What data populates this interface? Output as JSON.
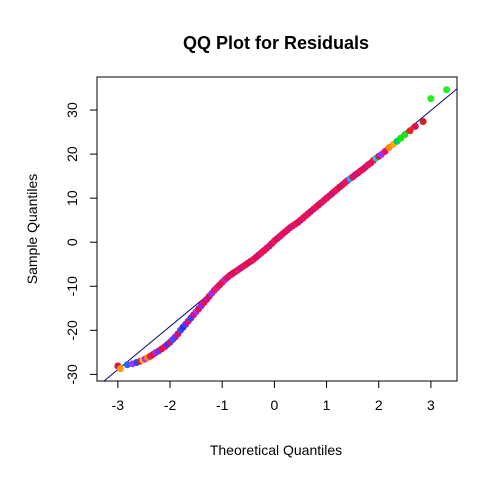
{
  "chart_data": {
    "type": "scatter",
    "title": "QQ Plot for Residuals",
    "xlabel": "Theoretical Quantiles",
    "ylabel": "Sample Quantiles",
    "xlim": [
      -3.4,
      3.5
    ],
    "ylim": [
      -31.5,
      37.5
    ],
    "x_ticks": [
      -3,
      -2,
      -1,
      0,
      1,
      2,
      3
    ],
    "x_tick_labels": [
      "-3",
      "-2",
      "-1",
      "0",
      "1",
      "2",
      "3"
    ],
    "y_ticks": [
      -30,
      -20,
      -10,
      0,
      10,
      20,
      30
    ],
    "y_tick_labels": [
      "-30",
      "-20",
      "-10",
      "0",
      "10",
      "20",
      "30"
    ],
    "grid": false,
    "reference_line": {
      "intercept": 0.5,
      "slope": 9.8,
      "color": "#00008b"
    },
    "points": [
      {
        "x": -3.0,
        "y": -28.1,
        "color": "#dd1133"
      },
      {
        "x": -2.95,
        "y": -28.7,
        "color": "#ff9900"
      },
      {
        "x": -2.82,
        "y": -27.8,
        "color": "#2266ff"
      },
      {
        "x": -2.72,
        "y": -27.6,
        "color": "#aa33ff"
      },
      {
        "x": -2.64,
        "y": -27.3,
        "color": "#3344ee"
      },
      {
        "x": -2.57,
        "y": -27.0,
        "color": "#dd1144"
      },
      {
        "x": -2.52,
        "y": -26.8,
        "color": "#ffcc00"
      },
      {
        "x": -2.48,
        "y": -26.5,
        "color": "#cc22ff"
      },
      {
        "x": -2.43,
        "y": -26.2,
        "color": "#ff8800"
      },
      {
        "x": -2.38,
        "y": -25.9,
        "color": "#dd2255"
      },
      {
        "x": -2.33,
        "y": -25.5,
        "color": "#ee1133"
      },
      {
        "x": -2.28,
        "y": -25.1,
        "color": "#bb22cc"
      },
      {
        "x": -2.22,
        "y": -24.7,
        "color": "#6633ff"
      },
      {
        "x": -2.16,
        "y": -24.2,
        "color": "#dd1144"
      },
      {
        "x": -2.1,
        "y": -23.7,
        "color": "#ee1155"
      },
      {
        "x": -2.05,
        "y": -23.2,
        "color": "#4433ff"
      },
      {
        "x": -2.0,
        "y": -22.7,
        "color": "#cc1166"
      },
      {
        "x": -1.95,
        "y": -22.1,
        "color": "#3355ff"
      },
      {
        "x": -1.9,
        "y": -21.5,
        "color": "#8822ee"
      },
      {
        "x": -1.85,
        "y": -20.8,
        "color": "#dd1155"
      },
      {
        "x": -1.8,
        "y": -20.0,
        "color": "#4444ff"
      },
      {
        "x": -1.75,
        "y": -19.3,
        "color": "#2233ee"
      },
      {
        "x": -1.7,
        "y": -18.6,
        "color": "#7722ee"
      },
      {
        "x": -1.65,
        "y": -17.9,
        "color": "#dd1166"
      },
      {
        "x": -1.6,
        "y": -17.2,
        "color": "#3344ff"
      },
      {
        "x": -1.55,
        "y": -16.5,
        "color": "#cc1188"
      },
      {
        "x": -1.5,
        "y": -15.8,
        "color": "#bb22dd"
      },
      {
        "x": -1.45,
        "y": -15.1,
        "color": "#dd1155"
      },
      {
        "x": -1.4,
        "y": -14.4,
        "color": "#9922ee"
      },
      {
        "x": -1.35,
        "y": -13.7,
        "color": "#ee1144"
      },
      {
        "x": -1.3,
        "y": -13.0,
        "color": "#cc1199"
      },
      {
        "x": -1.25,
        "y": -12.3,
        "color": "#dd1155"
      },
      {
        "x": -1.2,
        "y": -11.6,
        "color": "#8833ff"
      },
      {
        "x": -1.15,
        "y": -10.9,
        "color": "#ee1166"
      },
      {
        "x": -1.1,
        "y": -10.3,
        "color": "#cc2288"
      },
      {
        "x": -1.05,
        "y": -9.7,
        "color": "#dd1155"
      },
      {
        "x": -1.0,
        "y": -9.1,
        "color": "#ee1144"
      },
      {
        "x": -0.95,
        "y": -8.5,
        "color": "#bb22cc"
      },
      {
        "x": -0.9,
        "y": -8.0,
        "color": "#dd1166"
      },
      {
        "x": -0.85,
        "y": -7.5,
        "color": "#ee1155"
      },
      {
        "x": -0.8,
        "y": -7.1,
        "color": "#cc1177"
      },
      {
        "x": -0.75,
        "y": -6.7,
        "color": "#dd1144"
      },
      {
        "x": -0.7,
        "y": -6.3,
        "color": "#ee1166"
      },
      {
        "x": -0.65,
        "y": -5.9,
        "color": "#cc1188"
      },
      {
        "x": -0.6,
        "y": -5.5,
        "color": "#dd1155"
      },
      {
        "x": -0.55,
        "y": -5.1,
        "color": "#ee1144"
      },
      {
        "x": -0.5,
        "y": -4.7,
        "color": "#cc1166"
      },
      {
        "x": -0.45,
        "y": -4.3,
        "color": "#dd1155"
      },
      {
        "x": -0.4,
        "y": -3.9,
        "color": "#ee1166"
      },
      {
        "x": -0.35,
        "y": -3.4,
        "color": "#dd1144"
      },
      {
        "x": -0.3,
        "y": -2.9,
        "color": "#cc1177"
      },
      {
        "x": -0.25,
        "y": -2.4,
        "color": "#ee1155"
      },
      {
        "x": -0.2,
        "y": -1.9,
        "color": "#dd1166"
      },
      {
        "x": -0.15,
        "y": -1.4,
        "color": "#ee1144"
      },
      {
        "x": -0.1,
        "y": -0.9,
        "color": "#cc1188"
      },
      {
        "x": -0.05,
        "y": -0.3,
        "color": "#dd1155"
      },
      {
        "x": 0.0,
        "y": 0.3,
        "color": "#ee1166"
      },
      {
        "x": 0.05,
        "y": 0.8,
        "color": "#dd1144"
      },
      {
        "x": 0.1,
        "y": 1.3,
        "color": "#cc1177"
      },
      {
        "x": 0.15,
        "y": 1.8,
        "color": "#ee1155"
      },
      {
        "x": 0.2,
        "y": 2.3,
        "color": "#dd1166"
      },
      {
        "x": 0.25,
        "y": 2.8,
        "color": "#ee1144"
      },
      {
        "x": 0.3,
        "y": 3.3,
        "color": "#cc1188"
      },
      {
        "x": 0.35,
        "y": 3.7,
        "color": "#dd1155"
      },
      {
        "x": 0.4,
        "y": 4.1,
        "color": "#ee1166"
      },
      {
        "x": 0.45,
        "y": 4.5,
        "color": "#dd1144"
      },
      {
        "x": 0.5,
        "y": 5.0,
        "color": "#cc1177"
      },
      {
        "x": 0.55,
        "y": 5.5,
        "color": "#ee1155"
      },
      {
        "x": 0.6,
        "y": 6.0,
        "color": "#dd1166"
      },
      {
        "x": 0.65,
        "y": 6.5,
        "color": "#ee1144"
      },
      {
        "x": 0.7,
        "y": 7.0,
        "color": "#cc1188"
      },
      {
        "x": 0.75,
        "y": 7.5,
        "color": "#dd1155"
      },
      {
        "x": 0.8,
        "y": 8.0,
        "color": "#ee1166"
      },
      {
        "x": 0.85,
        "y": 8.5,
        "color": "#dd1144"
      },
      {
        "x": 0.9,
        "y": 9.0,
        "color": "#cc1177"
      },
      {
        "x": 0.95,
        "y": 9.5,
        "color": "#ee1155"
      },
      {
        "x": 1.0,
        "y": 10.0,
        "color": "#dd1166"
      },
      {
        "x": 1.05,
        "y": 10.5,
        "color": "#ee1144"
      },
      {
        "x": 1.1,
        "y": 11.0,
        "color": "#cc1188"
      },
      {
        "x": 1.15,
        "y": 11.5,
        "color": "#dd1155"
      },
      {
        "x": 1.2,
        "y": 12.0,
        "color": "#ee1166"
      },
      {
        "x": 1.25,
        "y": 12.5,
        "color": "#dd1144"
      },
      {
        "x": 1.3,
        "y": 13.0,
        "color": "#cc1177"
      },
      {
        "x": 1.35,
        "y": 13.5,
        "color": "#ee1155"
      },
      {
        "x": 1.4,
        "y": 14.0,
        "color": "#dd1166"
      },
      {
        "x": 1.45,
        "y": 14.4,
        "color": "#22aaff"
      },
      {
        "x": 1.5,
        "y": 14.8,
        "color": "#ee1144"
      },
      {
        "x": 1.55,
        "y": 15.3,
        "color": "#cc1188"
      },
      {
        "x": 1.6,
        "y": 15.7,
        "color": "#dd1155"
      },
      {
        "x": 1.65,
        "y": 16.2,
        "color": "#ee1166"
      },
      {
        "x": 1.7,
        "y": 16.6,
        "color": "#dd1144"
      },
      {
        "x": 1.75,
        "y": 17.1,
        "color": "#cc1177"
      },
      {
        "x": 1.8,
        "y": 17.6,
        "color": "#ee1155"
      },
      {
        "x": 1.85,
        "y": 18.0,
        "color": "#dd1166"
      },
      {
        "x": 1.9,
        "y": 18.6,
        "color": "#ee1144"
      },
      {
        "x": 1.95,
        "y": 19.1,
        "color": "#22cccc"
      },
      {
        "x": 2.0,
        "y": 19.5,
        "color": "#dd1155"
      },
      {
        "x": 2.05,
        "y": 19.9,
        "color": "#9933ff"
      },
      {
        "x": 2.12,
        "y": 20.6,
        "color": "#ee1166"
      },
      {
        "x": 2.2,
        "y": 21.5,
        "color": "#ff8800"
      },
      {
        "x": 2.28,
        "y": 22.2,
        "color": "#ffaa00"
      },
      {
        "x": 2.35,
        "y": 22.9,
        "color": "#00cc66"
      },
      {
        "x": 2.42,
        "y": 23.6,
        "color": "#00ee00"
      },
      {
        "x": 2.5,
        "y": 24.4,
        "color": "#22dd22"
      },
      {
        "x": 2.6,
        "y": 25.3,
        "color": "#ee2222"
      },
      {
        "x": 2.7,
        "y": 26.3,
        "color": "#dd1144"
      },
      {
        "x": 2.85,
        "y": 27.4,
        "color": "#cc2222"
      },
      {
        "x": 3.0,
        "y": 32.6,
        "color": "#22ee22"
      },
      {
        "x": 3.3,
        "y": 34.6,
        "color": "#22ee22"
      }
    ]
  }
}
